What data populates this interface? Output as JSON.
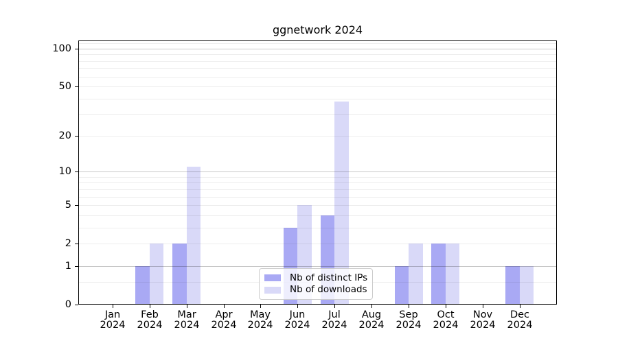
{
  "chart_data": {
    "type": "bar",
    "title": "ggnetwork 2024",
    "categories": [
      "Jan",
      "Feb",
      "Mar",
      "Apr",
      "May",
      "Jun",
      "Jul",
      "Aug",
      "Sep",
      "Oct",
      "Nov",
      "Dec"
    ],
    "year": "2024",
    "series": [
      {
        "name": "Nb of distinct IPs",
        "color": "#a9a9f4",
        "values": [
          0,
          1,
          2,
          0,
          0,
          3,
          4,
          0,
          1,
          2,
          0,
          1
        ]
      },
      {
        "name": "Nb of downloads",
        "color": "#d9d9f8",
        "values": [
          0,
          2,
          11,
          0,
          0,
          5,
          38,
          0,
          2,
          2,
          0,
          1
        ]
      }
    ],
    "yscale": "log1p",
    "ylim": [
      0,
      116
    ],
    "y_tick_labels": [
      0,
      1,
      2,
      5,
      10,
      20,
      50,
      100
    ],
    "grid_major": [
      1,
      10,
      100
    ],
    "grid_minor": [
      0.5,
      2,
      3,
      4,
      5,
      6,
      7,
      8,
      9,
      20,
      30,
      40,
      50,
      60,
      70,
      80,
      90,
      110
    ],
    "grid": true,
    "legend_position": "lower center",
    "colors": {
      "grid_major": "rgba(0,0,0,0.22)",
      "grid_minor": "rgba(0,0,0,0.07)",
      "spine": "#000000",
      "text": "#000000"
    }
  }
}
